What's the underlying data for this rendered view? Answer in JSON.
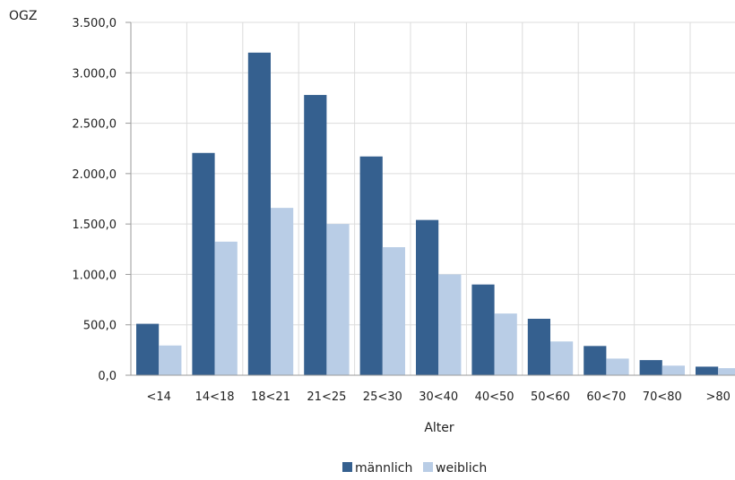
{
  "chart_data": {
    "type": "bar",
    "ylabel": "OGZ",
    "xlabel": "Alter",
    "categories": [
      "<14",
      "14<18",
      "18<21",
      "21<25",
      "25<30",
      "30<40",
      "40<50",
      "50<60",
      "60<70",
      "70<80",
      ">80"
    ],
    "series": [
      {
        "name": "männlich",
        "color": "#35608f",
        "values": [
          510,
          2205,
          3200,
          2780,
          2170,
          1540,
          900,
          560,
          290,
          150,
          85
        ]
      },
      {
        "name": "weiblich",
        "color": "#b9cde6",
        "values": [
          295,
          1325,
          1660,
          1500,
          1270,
          1000,
          612,
          335,
          165,
          95,
          70
        ]
      }
    ],
    "ylim": [
      0,
      3500
    ],
    "yticks": [
      "0,0",
      "500,0",
      "1.000,0",
      "1.500,0",
      "2.000,0",
      "2.500,0",
      "3.000,0",
      "3.500,0"
    ],
    "grid": true,
    "legend_position": "bottom-center"
  }
}
